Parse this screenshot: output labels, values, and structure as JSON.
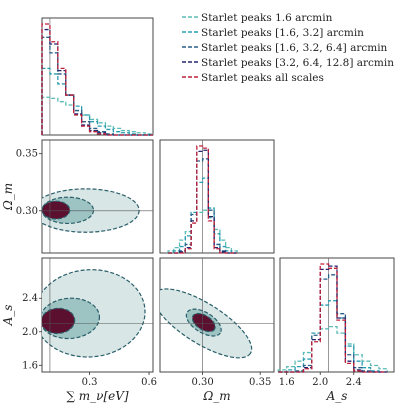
{
  "chart_data": {
    "type": "corner",
    "parameters": [
      {
        "key": "mnu",
        "label": "∑ m_ν[eV]",
        "ticks": [
          {
            "v": 0.3,
            "t": "0.3"
          },
          {
            "v": 0.6,
            "t": "0.6"
          }
        ],
        "range": [
          0.06,
          0.62
        ],
        "truth": 0.1
      },
      {
        "key": "om",
        "label": "Ω_m",
        "ticks": [
          {
            "v": 0.3,
            "t": "0.30"
          },
          {
            "v": 0.35,
            "t": "0.35"
          }
        ],
        "range": [
          0.263,
          0.362
        ],
        "truth": 0.3
      },
      {
        "key": "as",
        "label": "A_s",
        "ticks": [
          {
            "v": 1.6,
            "t": "1.6"
          },
          {
            "v": 2.0,
            "t": "2.0"
          },
          {
            "v": 2.4,
            "t": "2.4"
          }
        ],
        "range": [
          1.52,
          2.88
        ],
        "truth": 2.1
      }
    ],
    "series": [
      {
        "name": "Starlet peaks 1.6 arcmin",
        "color": "#5bbbb5"
      },
      {
        "name": "Starlet peaks [1.6, 3.2] arcmin",
        "color": "#2a9db0"
      },
      {
        "name": "Starlet peaks [1.6, 3.2, 6.4] arcmin",
        "color": "#2a5f86"
      },
      {
        "name": "Starlet peaks [3.2, 6.4, 12.8] arcmin",
        "color": "#262670"
      },
      {
        "name": "Starlet peaks all scales",
        "color": "#c0213a"
      }
    ],
    "hist_mnu": {
      "edges": [
        0.06,
        0.1,
        0.14,
        0.18,
        0.22,
        0.26,
        0.3,
        0.34,
        0.38,
        0.42,
        0.46,
        0.5,
        0.54,
        0.58,
        0.62
      ],
      "values": [
        [
          0.34,
          0.33,
          0.3,
          0.27,
          0.22,
          0.18,
          0.14,
          0.11,
          0.08,
          0.06,
          0.04,
          0.03,
          0.02,
          0.01
        ],
        [
          0.6,
          0.55,
          0.46,
          0.36,
          0.26,
          0.18,
          0.12,
          0.08,
          0.05,
          0.03,
          0.02,
          0.01,
          0.0,
          0.0
        ],
        [
          0.88,
          0.74,
          0.55,
          0.36,
          0.22,
          0.12,
          0.06,
          0.03,
          0.01,
          0.0,
          0.0,
          0.0,
          0.0,
          0.0
        ],
        [
          0.95,
          0.82,
          0.58,
          0.36,
          0.19,
          0.09,
          0.04,
          0.02,
          0.0,
          0.0,
          0.0,
          0.0,
          0.0,
          0.0
        ],
        [
          1.0,
          0.84,
          0.6,
          0.36,
          0.18,
          0.08,
          0.03,
          0.01,
          0.0,
          0.0,
          0.0,
          0.0,
          0.0,
          0.0
        ]
      ]
    },
    "hist_om": {
      "edges": [
        0.27,
        0.275,
        0.28,
        0.285,
        0.29,
        0.295,
        0.3,
        0.305,
        0.31,
        0.315,
        0.32,
        0.325,
        0.33
      ],
      "values": [
        [
          0.02,
          0.05,
          0.12,
          0.2,
          0.3,
          0.38,
          0.4,
          0.33,
          0.22,
          0.12,
          0.05,
          0.02
        ],
        [
          0.0,
          0.02,
          0.06,
          0.16,
          0.38,
          0.66,
          0.7,
          0.42,
          0.18,
          0.06,
          0.02,
          0.0
        ],
        [
          0.0,
          0.0,
          0.02,
          0.08,
          0.36,
          0.86,
          0.88,
          0.4,
          0.08,
          0.02,
          0.0,
          0.0
        ],
        [
          0.0,
          0.0,
          0.01,
          0.05,
          0.3,
          0.95,
          0.96,
          0.34,
          0.05,
          0.01,
          0.0,
          0.0
        ],
        [
          0.0,
          0.0,
          0.0,
          0.04,
          0.28,
          1.0,
          0.98,
          0.3,
          0.04,
          0.0,
          0.0,
          0.0
        ]
      ]
    },
    "hist_as": {
      "edges": [
        1.5,
        1.6,
        1.7,
        1.8,
        1.9,
        2.0,
        2.1,
        2.2,
        2.3,
        2.4,
        2.5,
        2.6,
        2.7,
        2.8
      ],
      "values": [
        [
          0.02,
          0.05,
          0.1,
          0.18,
          0.3,
          0.4,
          0.42,
          0.36,
          0.26,
          0.16,
          0.1,
          0.06,
          0.03
        ],
        [
          0.0,
          0.02,
          0.05,
          0.12,
          0.36,
          0.62,
          0.66,
          0.5,
          0.24,
          0.1,
          0.04,
          0.01,
          0.0
        ],
        [
          0.0,
          0.0,
          0.01,
          0.06,
          0.34,
          0.86,
          0.9,
          0.54,
          0.16,
          0.04,
          0.01,
          0.0,
          0.0
        ],
        [
          0.0,
          0.0,
          0.0,
          0.04,
          0.3,
          0.95,
          0.98,
          0.5,
          0.1,
          0.02,
          0.0,
          0.0,
          0.0
        ],
        [
          0.0,
          0.0,
          0.0,
          0.03,
          0.28,
          1.0,
          0.96,
          0.48,
          0.08,
          0.01,
          0.0,
          0.0,
          0.0
        ]
      ]
    },
    "contours": {
      "om_vs_mnu": [
        {
          "level": "outer",
          "center": [
            0.28,
            0.3002
          ],
          "radius": [
            0.27,
            0.019
          ]
        },
        {
          "level": "mid",
          "center": [
            0.19,
            0.3004
          ],
          "radius": [
            0.13,
            0.0115
          ]
        },
        {
          "level": "inner",
          "center": [
            0.13,
            0.3006
          ],
          "radius": [
            0.07,
            0.0078
          ]
        }
      ],
      "as_vs_mnu": [
        {
          "level": "outer",
          "center": [
            0.3,
            2.22
          ],
          "radius": [
            0.28,
            0.52
          ]
        },
        {
          "level": "mid",
          "center": [
            0.2,
            2.16
          ],
          "radius": [
            0.15,
            0.24
          ]
        },
        {
          "level": "inner",
          "center": [
            0.14,
            2.13
          ],
          "radius": [
            0.085,
            0.15
          ]
        }
      ],
      "as_vs_om": [
        {
          "level": "outer",
          "center": [
            0.3,
            2.1
          ],
          "radius": [
            0.049,
            0.24
          ]
        },
        {
          "level": "mid",
          "center": [
            0.301,
            2.11
          ],
          "radius": [
            0.017,
            0.12
          ]
        },
        {
          "level": "inner",
          "center": [
            0.301,
            2.11
          ],
          "radius": [
            0.011,
            0.085
          ]
        }
      ]
    },
    "fill_colors": {
      "outer": "#d9e6e6",
      "mid": "#9dc3c3",
      "inner": "#5c1030"
    },
    "line_color": "#2a5f6a",
    "truth_line_color": "#555555"
  }
}
